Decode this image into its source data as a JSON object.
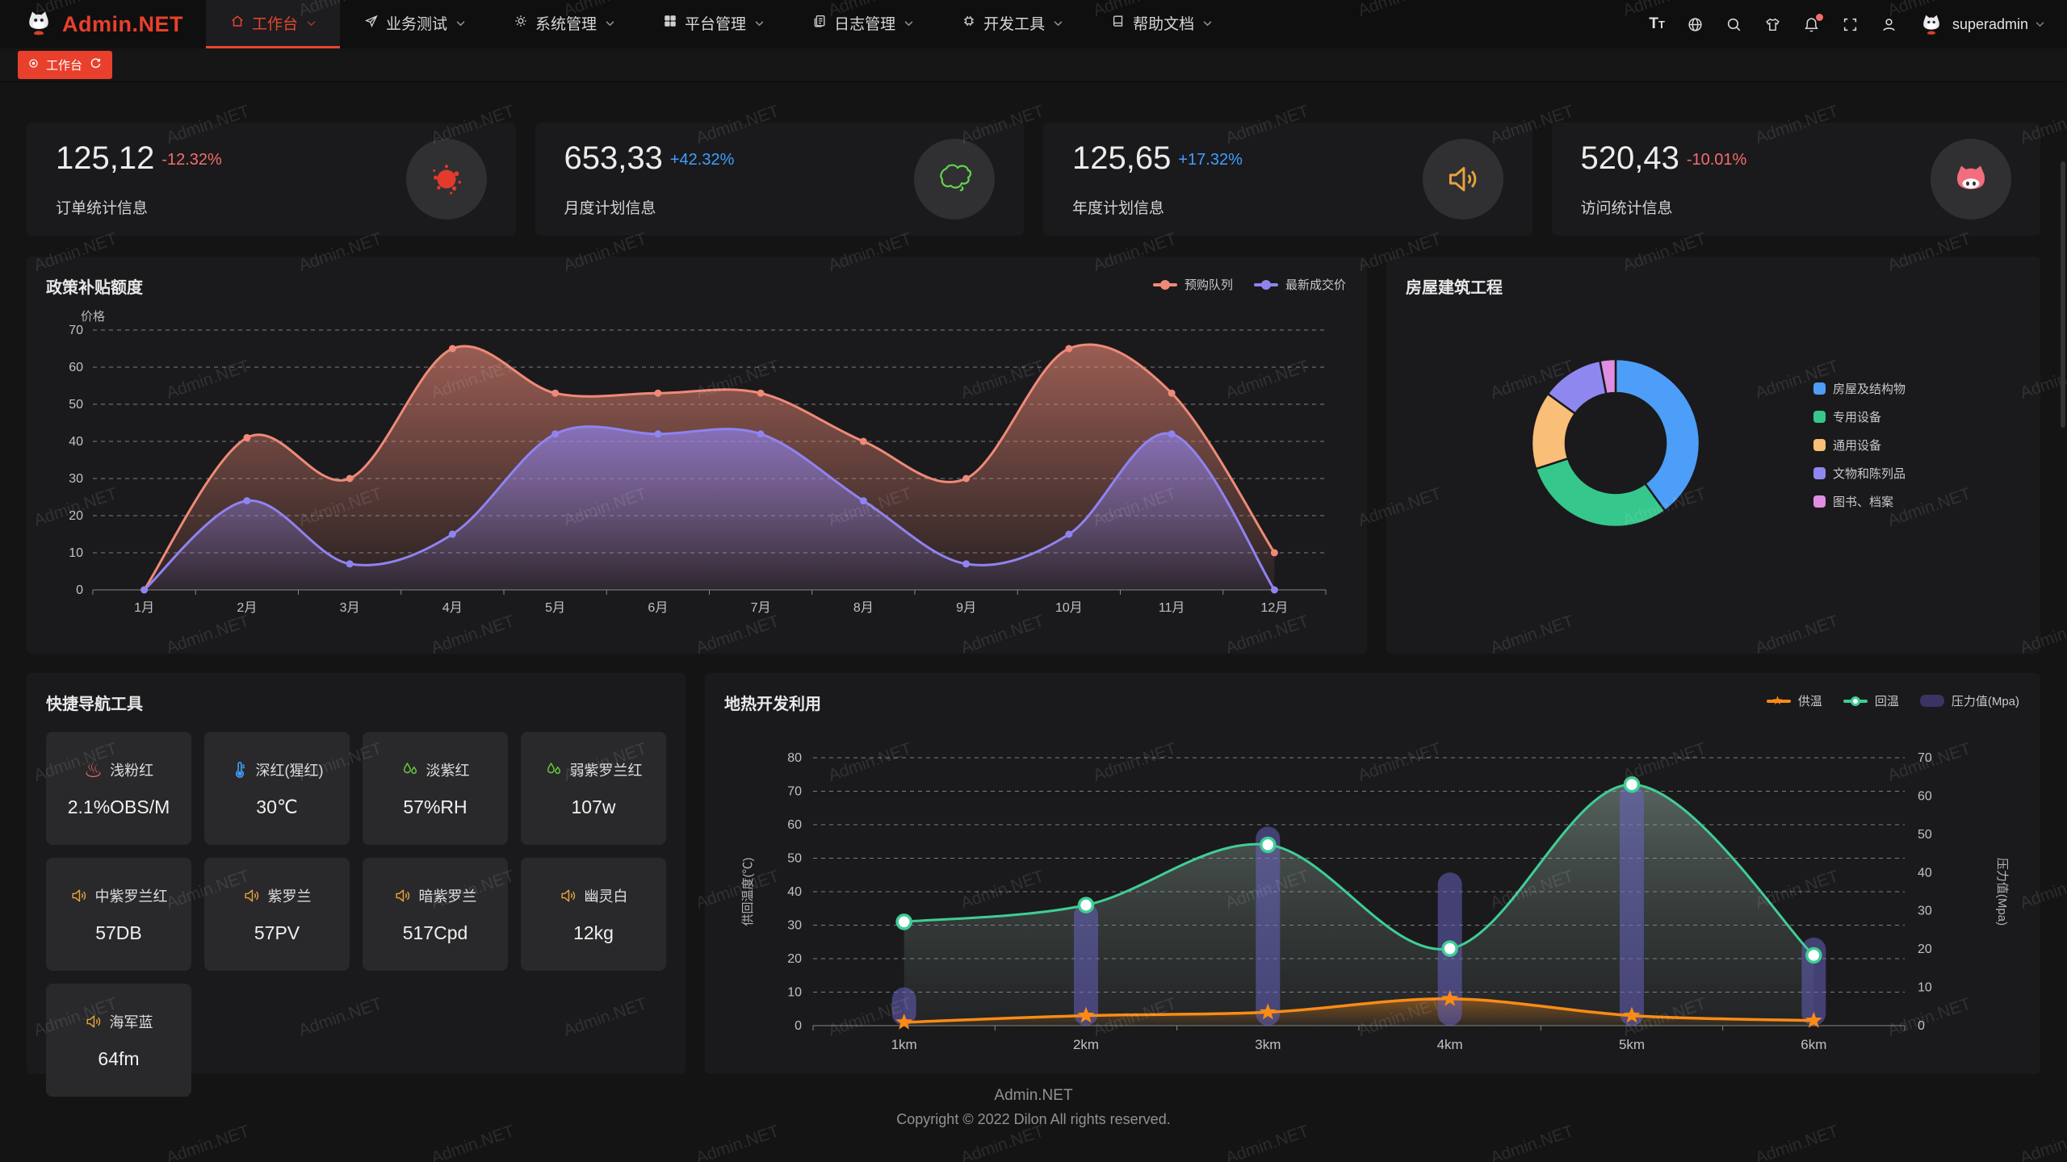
{
  "watermark": "Admin.NET",
  "navbar": {
    "logo_text": "Admin.NET",
    "menu": [
      {
        "label": "工作台",
        "icon": "home-icon",
        "active": true
      },
      {
        "label": "业务测试",
        "icon": "send-icon",
        "active": false
      },
      {
        "label": "系统管理",
        "icon": "gear-icon",
        "active": false
      },
      {
        "label": "平台管理",
        "icon": "grid-icon",
        "active": false
      },
      {
        "label": "日志管理",
        "icon": "log-icon",
        "active": false
      },
      {
        "label": "开发工具",
        "icon": "chip-icon",
        "active": false
      },
      {
        "label": "帮助文档",
        "icon": "book-icon",
        "active": false
      }
    ],
    "right": {
      "font_icon_text": "Tt",
      "username": "superadmin",
      "icons": [
        "font-size-icon",
        "language-icon",
        "search-icon",
        "theme-icon",
        "notification-bell-icon",
        "fullscreen-icon",
        "user-icon"
      ]
    }
  },
  "tabbar": {
    "active_tab": "工作台"
  },
  "stats": [
    {
      "value": "125,12",
      "delta": "-12.32%",
      "delta_color": "#F56C6C",
      "label": "订单统计信息",
      "icon": "ink-splat",
      "icon_color": "#E23B2B"
    },
    {
      "value": "653,33",
      "delta": "+42.32%",
      "delta_color": "#409EFF",
      "label": "月度计划信息",
      "icon": "china-map",
      "icon_color": "#63D44A"
    },
    {
      "value": "125,65",
      "delta": "+17.32%",
      "delta_color": "#409EFF",
      "label": "年度计划信息",
      "icon": "speaker",
      "icon_color": "#E6A23C"
    },
    {
      "value": "520,43",
      "delta": "-10.01%",
      "delta_color": "#F56C6C",
      "label": "访问统计信息",
      "icon": "pig-face",
      "icon_color": "#F26D7E"
    }
  ],
  "chart_data": [
    {
      "type": "area",
      "title": "政策补贴额度",
      "ylabel": "价格",
      "ylim": [
        0,
        70
      ],
      "grid": true,
      "legend_position": "top-right",
      "categories": [
        "1月",
        "2月",
        "3月",
        "4月",
        "5月",
        "6月",
        "7月",
        "8月",
        "9月",
        "10月",
        "11月",
        "12月"
      ],
      "series": [
        {
          "name": "预购队列",
          "color": "#EF8A78",
          "values": [
            0,
            41,
            30,
            65,
            53,
            53,
            53,
            40,
            30,
            65,
            53,
            10
          ]
        },
        {
          "name": "最新成交价",
          "color": "#8F83F0",
          "values": [
            0,
            24,
            7,
            15,
            42,
            42,
            42,
            24,
            7,
            15,
            42,
            0
          ]
        }
      ]
    },
    {
      "type": "pie",
      "title": "房屋建筑工程",
      "legend_position": "right",
      "slices": [
        {
          "label": "房屋及结构物",
          "value": 40,
          "color": "#4D9EF8"
        },
        {
          "label": "专用设备",
          "value": 30,
          "color": "#36C78C"
        },
        {
          "label": "通用设备",
          "value": 15,
          "color": "#F9BE77"
        },
        {
          "label": "文物和陈列品",
          "value": 12,
          "color": "#8F87F0"
        },
        {
          "label": "图书、档案",
          "value": 3,
          "color": "#E08DE2"
        }
      ]
    },
    {
      "type": "bar",
      "title": "地热开发利用",
      "categories": [
        "1km",
        "2km",
        "3km",
        "4km",
        "5km",
        "6km"
      ],
      "left_axis": {
        "label": "供回温度(℃)",
        "min": 0,
        "max": 80
      },
      "right_axis": {
        "label": "压力值(Mpa)",
        "min": 0,
        "max": 70
      },
      "legend_position": "top-right",
      "series": [
        {
          "name": "供温",
          "kind": "line",
          "marker": "star",
          "axis": "left",
          "color": "#FB8B15",
          "values": [
            1,
            3,
            4,
            8,
            3,
            1.5
          ]
        },
        {
          "name": "回温",
          "kind": "line",
          "marker": "circle",
          "axis": "left",
          "color": "#3FCE94",
          "values": [
            31,
            36,
            54,
            23,
            72,
            21
          ]
        },
        {
          "name": "压力值(Mpa)",
          "kind": "bar",
          "axis": "right",
          "color": "#6B66C9",
          "values": [
            10,
            32,
            52,
            40,
            63,
            23
          ]
        }
      ]
    }
  ],
  "quick_nav": {
    "title": "快捷导航工具",
    "items": [
      {
        "name": "浅粉红",
        "value": "2.1%OBS/M",
        "icon": "hot-spring",
        "icon_color": "#F56C6C"
      },
      {
        "name": "深红(猩红)",
        "value": "30℃",
        "icon": "thermometer",
        "icon_color": "#409EFF"
      },
      {
        "name": "淡紫红",
        "value": "57%RH",
        "icon": "water-drops",
        "icon_color": "#67C23A"
      },
      {
        "name": "弱紫罗兰红",
        "value": "107w",
        "icon": "water-drops",
        "icon_color": "#67C23A"
      },
      {
        "name": "中紫罗兰红",
        "value": "57DB",
        "icon": "speaker",
        "icon_color": "#E6A23C"
      },
      {
        "name": "紫罗兰",
        "value": "57PV",
        "icon": "speaker",
        "icon_color": "#E6A23C"
      },
      {
        "name": "暗紫罗兰",
        "value": "517Cpd",
        "icon": "speaker",
        "icon_color": "#E6A23C"
      },
      {
        "name": "幽灵白",
        "value": "12kg",
        "icon": "speaker",
        "icon_color": "#E6A23C"
      },
      {
        "name": "海军蓝",
        "value": "64fm",
        "icon": "speaker",
        "icon_color": "#E6A23C"
      }
    ]
  },
  "footer": {
    "line1": "Admin.NET",
    "line2": "Copyright © 2022 Dilon All rights reserved."
  }
}
